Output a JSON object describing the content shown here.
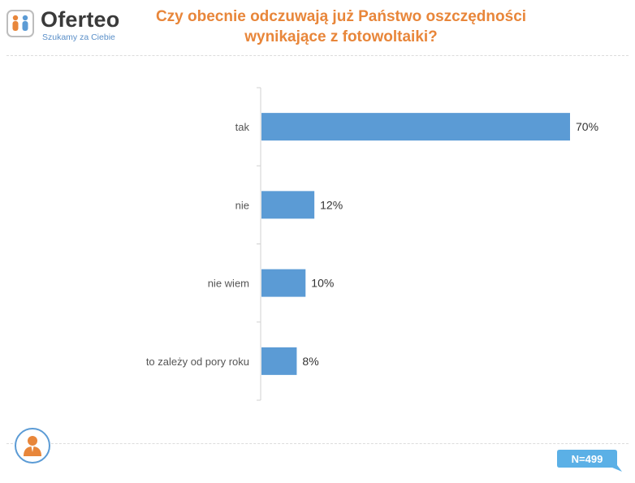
{
  "logo": {
    "brand": "Oferteo",
    "tagline": "Szukamy za Ciebie"
  },
  "header": {
    "title_line1": "Czy obecnie odczuwają już Państwo oszczędności",
    "title_line2": "wynikające z fotowoltaiki?"
  },
  "footer": {
    "sample": "N=499"
  },
  "colors": {
    "bar": "#5b9bd5",
    "title": "#e8863a",
    "badge": "#5bb0e6"
  },
  "chart_data": {
    "type": "bar",
    "orientation": "horizontal",
    "title": "Czy obecnie odczuwają już Państwo oszczędności wynikające z fotowoltaiki?",
    "categories": [
      "tak",
      "nie",
      "nie wiem",
      "to zależy od pory roku"
    ],
    "values": [
      70,
      12,
      10,
      8
    ],
    "value_labels": [
      "70%",
      "12%",
      "10%",
      "8%"
    ],
    "unit": "%",
    "xlim": [
      0,
      70
    ],
    "grid": false,
    "legend": "none"
  }
}
